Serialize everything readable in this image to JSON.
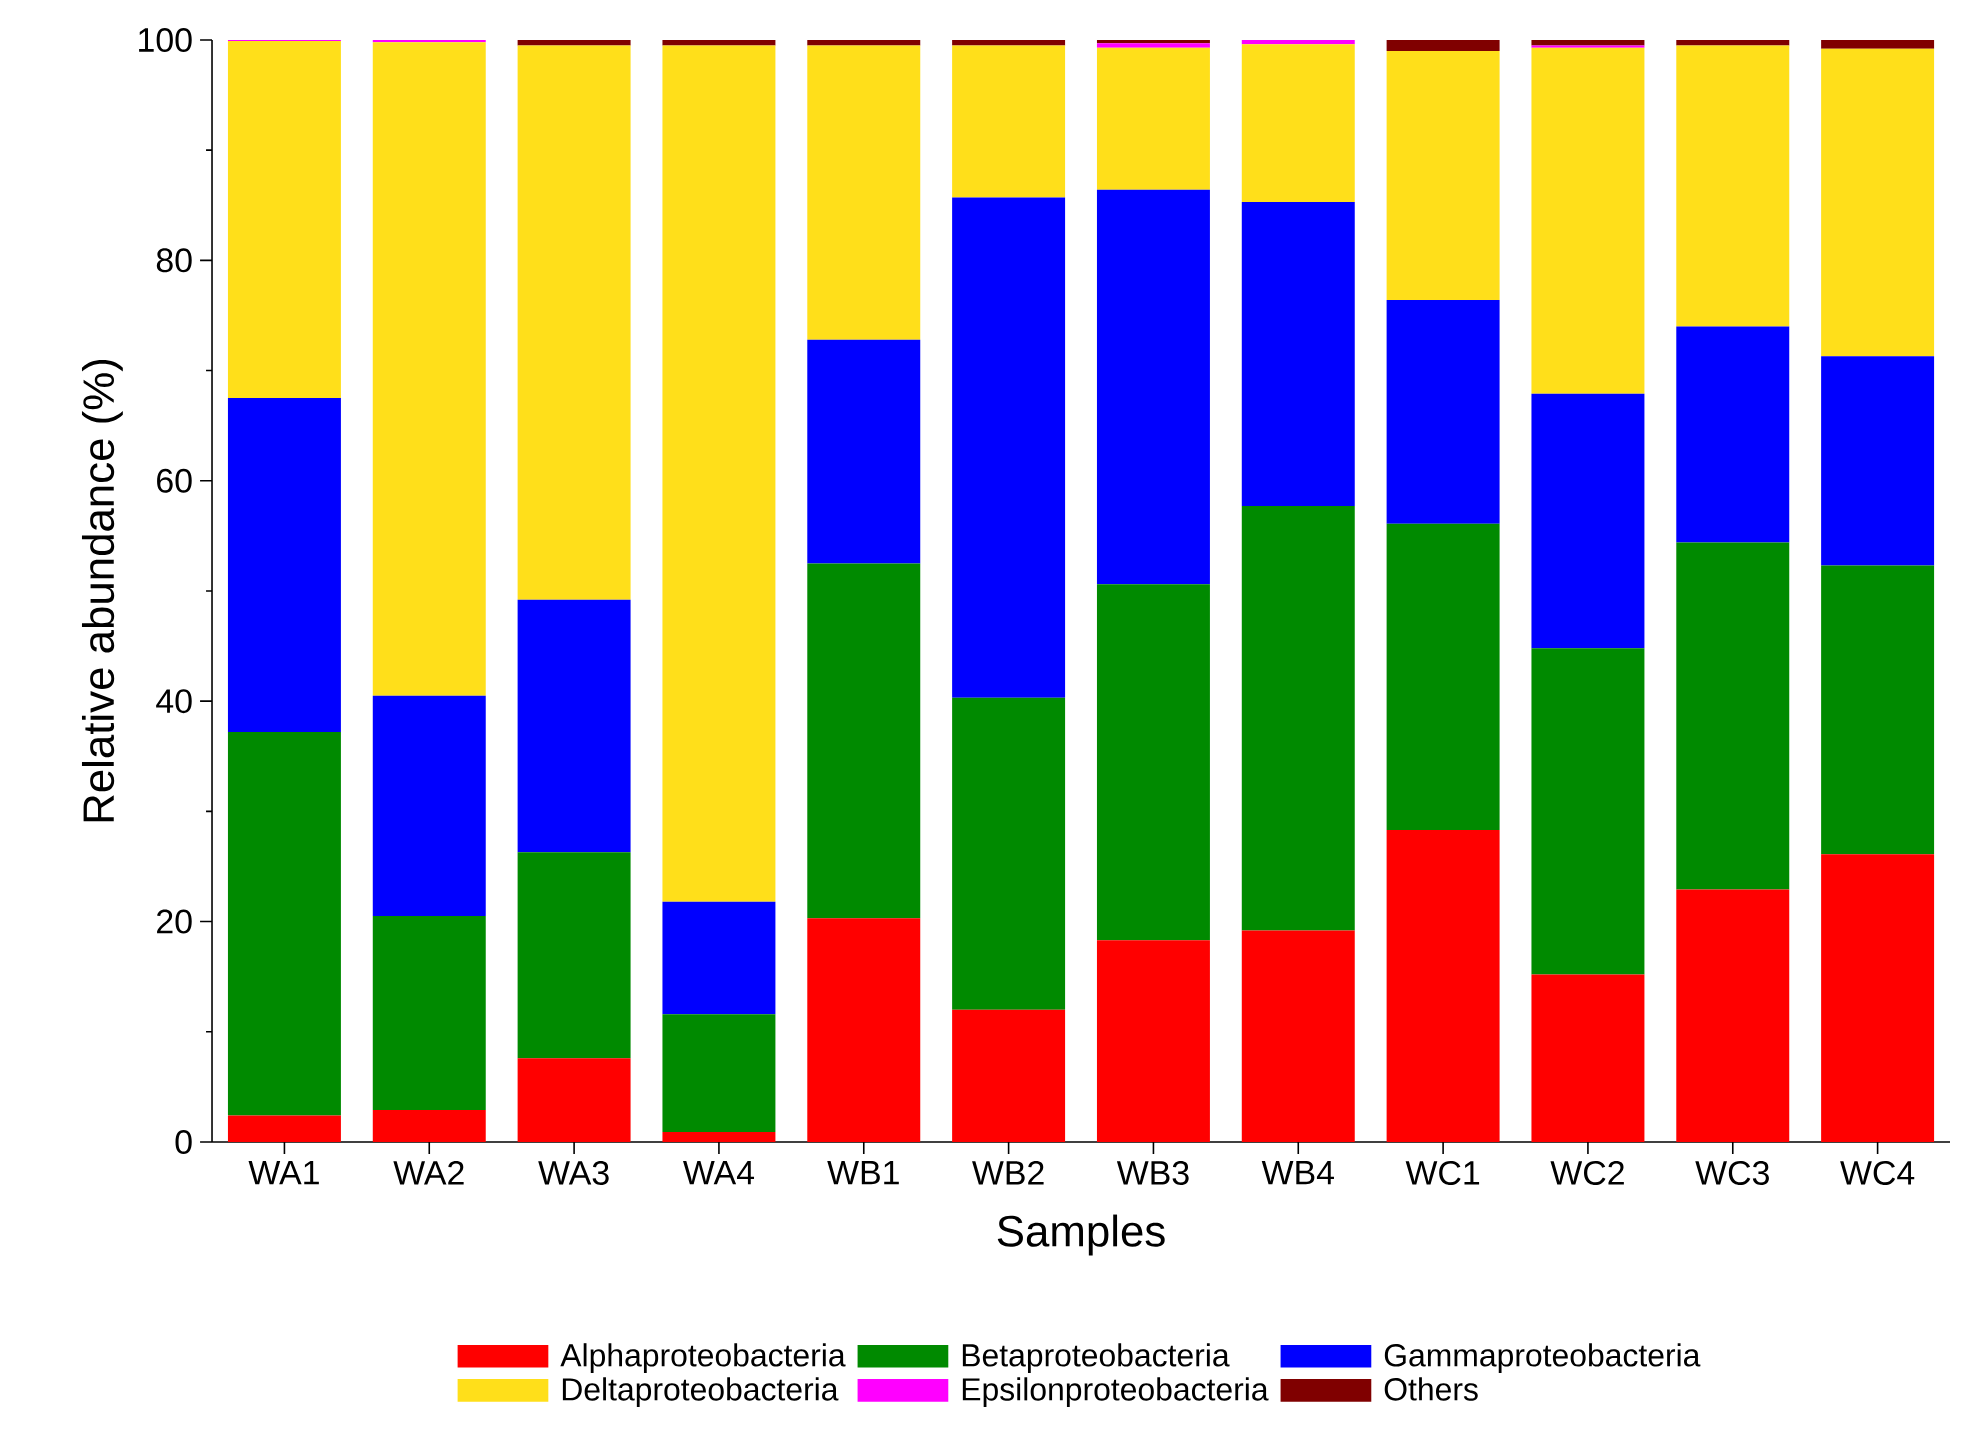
{
  "chart_data": {
    "type": "bar",
    "stacked": true,
    "xlabel": "Samples",
    "ylabel": "Relative abundance (%)",
    "categories": [
      "WA1",
      "WA2",
      "WA3",
      "WA4",
      "WB1",
      "WB2",
      "WB3",
      "WB4",
      "WC1",
      "WC2",
      "WC3",
      "WC4"
    ],
    "ylim": [
      0,
      100
    ],
    "yticks": [
      0,
      20,
      40,
      60,
      80,
      100
    ],
    "legend": "bottom",
    "grid": false,
    "series": [
      {
        "name": "Alphaproteobacteria",
        "color": "#ff0000",
        "values": [
          2.4,
          2.9,
          7.6,
          0.9,
          20.3,
          12.0,
          18.3,
          19.2,
          28.3,
          15.2,
          22.9,
          26.1
        ]
      },
      {
        "name": "Betaproteobacteria",
        "color": "#008a00",
        "values": [
          34.8,
          17.6,
          18.7,
          10.7,
          32.2,
          28.3,
          32.3,
          38.5,
          27.8,
          29.6,
          31.5,
          26.2
        ]
      },
      {
        "name": "Gammaproteobacteria",
        "color": "#0000ff",
        "values": [
          30.3,
          20.0,
          22.9,
          10.2,
          20.3,
          45.4,
          35.8,
          27.6,
          20.3,
          23.1,
          19.6,
          19.0
        ]
      },
      {
        "name": "Deltaproteobacteria",
        "color": "#ffdf1a",
        "values": [
          32.4,
          59.3,
          50.3,
          77.7,
          26.7,
          13.8,
          12.9,
          14.3,
          22.6,
          31.4,
          25.5,
          27.9
        ]
      },
      {
        "name": "Epsilonproteobacteria",
        "color": "#ff00ff",
        "values": [
          0.1,
          0.2,
          0,
          0,
          0,
          0,
          0.4,
          0.4,
          0,
          0.2,
          0,
          0
        ]
      },
      {
        "name": "Others",
        "color": "#800000",
        "values": [
          0,
          0,
          0.5,
          0.5,
          0.5,
          0.5,
          0.3,
          0,
          1.0,
          0.5,
          0.5,
          0.8
        ]
      }
    ]
  }
}
